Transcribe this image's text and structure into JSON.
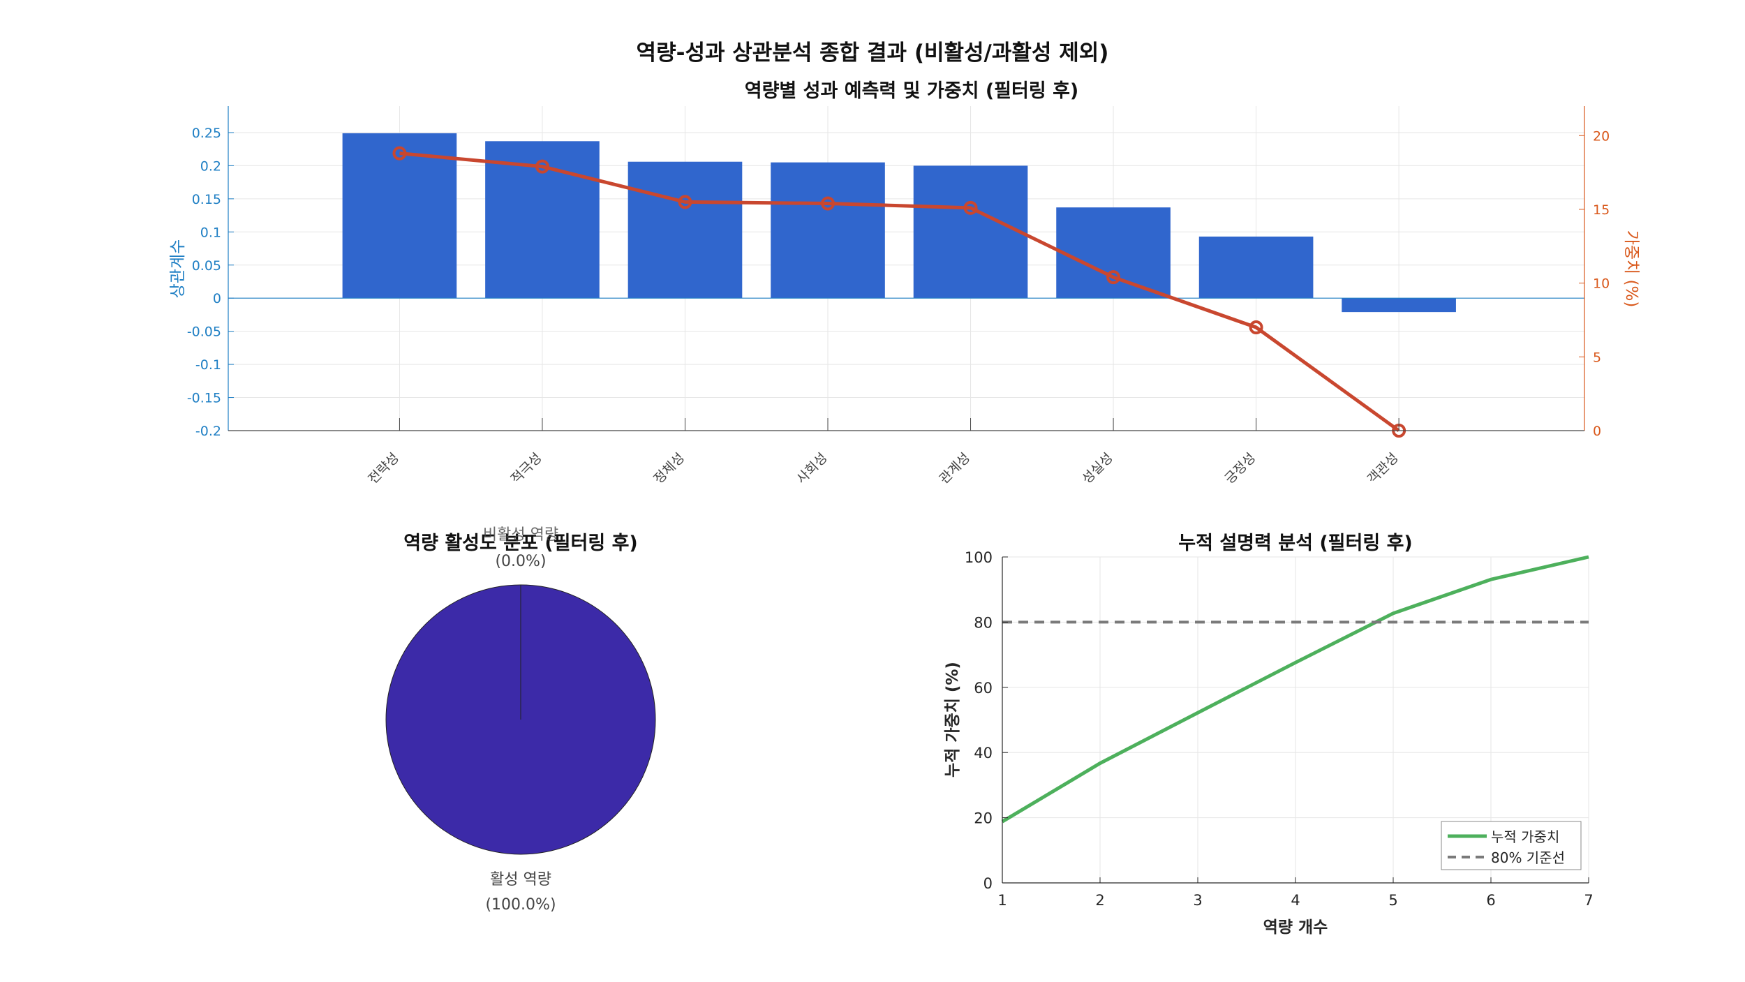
{
  "figure": {
    "title": "역량-성과 상관분석 종합 결과 (비활성/과활성 제외)"
  },
  "colors": {
    "bar": "#3066cd",
    "weight_line": "#c9472f",
    "left_axis": "#1f7fc4",
    "right_axis": "#d9581b",
    "pie_fill": "#3c2aa8",
    "cumulative_line": "#4db05c",
    "threshold_line": "#7a7a7a",
    "grid": "#e6e6e6",
    "axis": "#262626"
  },
  "chart_data": [
    {
      "id": "top",
      "type": "bar",
      "title": "역량별 성과 예측력 및 가중치 (필터링 후)",
      "categories": [
        "전략성",
        "적극성",
        "정체성",
        "사회성",
        "관계성",
        "성실성",
        "긍정성",
        "객관성"
      ],
      "ylabel": "상관계수",
      "y2label": "가중치 (%)",
      "ylim": [
        -0.2,
        0.29
      ],
      "y2lim": [
        0,
        22
      ],
      "yticks": [
        "-0.2",
        "-0.15",
        "-0.1",
        "-0.05",
        "0",
        "0.05",
        "0.1",
        "0.15",
        "0.2",
        "0.25"
      ],
      "y2ticks": [
        "0",
        "5",
        "10",
        "15",
        "20"
      ],
      "series": [
        {
          "type": "bar",
          "axis": "left",
          "values": [
            0.249,
            0.237,
            0.206,
            0.205,
            0.2,
            0.137,
            0.093,
            -0.021
          ]
        },
        {
          "type": "line",
          "axis": "right",
          "marker": "circle",
          "values": [
            18.8,
            17.9,
            15.5,
            15.4,
            15.1,
            10.4,
            7.0,
            0.0
          ]
        }
      ],
      "grid": true
    },
    {
      "id": "pie",
      "type": "pie",
      "title": "역량 활성도 분포 (필터링 후)",
      "labels": [
        "활성 역량",
        "비활성 역량"
      ],
      "values": [
        100.0,
        0.0
      ],
      "percent_labels": [
        "(100.0%)",
        "(0.0%)"
      ]
    },
    {
      "id": "cumulative",
      "type": "line",
      "title": "누적 설명력 분석 (필터링 후)",
      "xlabel": "역량 개수",
      "ylabel": "누적 가중치 (%)",
      "xlim": [
        1,
        7
      ],
      "ylim": [
        0,
        100
      ],
      "xticks": [
        "1",
        "2",
        "3",
        "4",
        "5",
        "6",
        "7"
      ],
      "yticks": [
        "0",
        "20",
        "40",
        "60",
        "80",
        "100"
      ],
      "series": [
        {
          "name": "누적 가중치",
          "x": [
            1,
            2,
            3,
            4,
            5,
            6,
            7
          ],
          "y": [
            18.8,
            36.7,
            52.2,
            67.6,
            82.7,
            93.1,
            100.0
          ]
        },
        {
          "name": "80% 기준선",
          "style": "dashed",
          "x": [
            1,
            7
          ],
          "y": [
            80,
            80
          ]
        }
      ],
      "legend": "bottom-right",
      "grid": true
    }
  ]
}
